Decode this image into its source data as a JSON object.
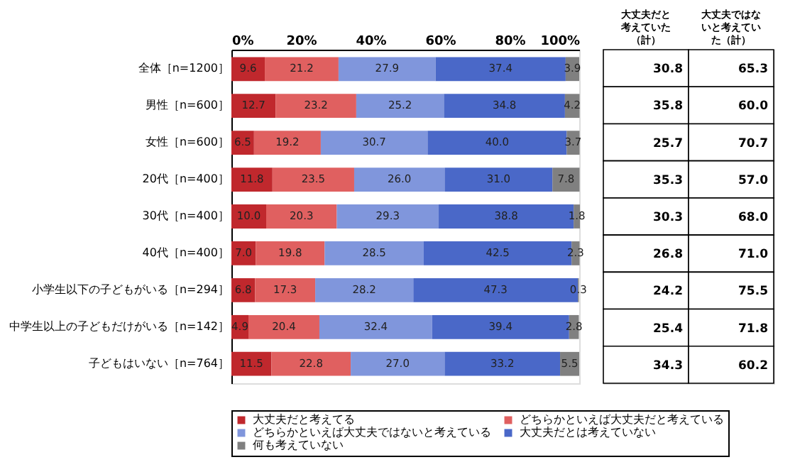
{
  "chart_data": [
    {
      "type": "bar",
      "orientation": "horizontal",
      "stacked": true,
      "categories": [
        "全体［n=1200］",
        "男性［n=600］",
        "女性［n=600］",
        "20代［n=400］",
        "30代［n=400］",
        "40代［n=400］",
        "小学生以下の子どもがいる［n=294］",
        "中学生以上の子どもだけがいる［n=142］",
        "子どもはいない［n=764］"
      ],
      "series": [
        {
          "name": "大丈夫だと考えてる",
          "color": "#c0282d",
          "values": [
            9.6,
            12.7,
            6.5,
            11.8,
            10.0,
            7.0,
            6.8,
            4.9,
            11.5
          ],
          "value_labels": [
            "9.6",
            "12.7",
            "6.5",
            "11.8",
            "10.0",
            "7.0",
            "6.8",
            "4.9",
            "11.5"
          ]
        },
        {
          "name": "どちらかといえば大丈夫だと考えている",
          "color": "#e06060",
          "values": [
            21.2,
            23.2,
            19.2,
            23.5,
            20.3,
            19.8,
            17.3,
            20.4,
            22.8
          ],
          "value_labels": [
            "21.2",
            "23.2",
            "19.2",
            "23.5",
            "20.3",
            "19.8",
            "17.3",
            "20.4",
            "22.8"
          ]
        },
        {
          "name": "どちらかといえば大丈夫ではないと考えている",
          "color": "#8096dc",
          "values": [
            27.9,
            25.2,
            30.7,
            26.0,
            29.3,
            28.5,
            28.2,
            32.4,
            27.0
          ],
          "value_labels": [
            "27.9",
            "25.2",
            "30.7",
            "26.0",
            "29.3",
            "28.5",
            "28.2",
            "32.4",
            "27.0"
          ]
        },
        {
          "name": "大丈夫だとは考えていない",
          "color": "#4a68c8",
          "values": [
            37.4,
            34.8,
            40.0,
            31.0,
            38.8,
            42.5,
            47.3,
            39.4,
            33.2
          ],
          "value_labels": [
            "37.4",
            "34.8",
            "40.0",
            "31.0",
            "38.8",
            "42.5",
            "47.3",
            "39.4",
            "33.2"
          ]
        },
        {
          "name": "何も考えていない",
          "color": "#808080",
          "values": [
            3.9,
            4.2,
            3.7,
            7.8,
            1.8,
            2.3,
            0.3,
            2.8,
            5.5
          ],
          "value_labels": [
            "3.9",
            "4.2",
            "3.7",
            "7.8",
            "1.8",
            "2.3",
            "0.3",
            "2.8",
            "5.5"
          ]
        }
      ],
      "xlim": [
        0,
        100
      ],
      "xticks": [
        {
          "value": 0,
          "label": "0%"
        },
        {
          "value": 20,
          "label": "20%"
        },
        {
          "value": 40,
          "label": "40%"
        },
        {
          "value": 60,
          "label": "60%"
        },
        {
          "value": 80,
          "label": "80%"
        },
        {
          "value": 100,
          "label": "100%"
        }
      ],
      "legend": "bottom"
    },
    {
      "type": "other",
      "categories": [
        "大丈夫だと考えていた（計）",
        "大丈夫ではないと考えていた（計）"
      ],
      "cell_labels": [
        [
          "30.8",
          "65.3"
        ],
        [
          "35.8",
          "60.0"
        ],
        [
          "25.7",
          "70.7"
        ],
        [
          "35.3",
          "57.0"
        ],
        [
          "30.3",
          "68.0"
        ],
        [
          "26.8",
          "71.0"
        ],
        [
          "24.2",
          "75.5"
        ],
        [
          "25.4",
          "71.8"
        ],
        [
          "34.3",
          "60.2"
        ]
      ]
    }
  ]
}
